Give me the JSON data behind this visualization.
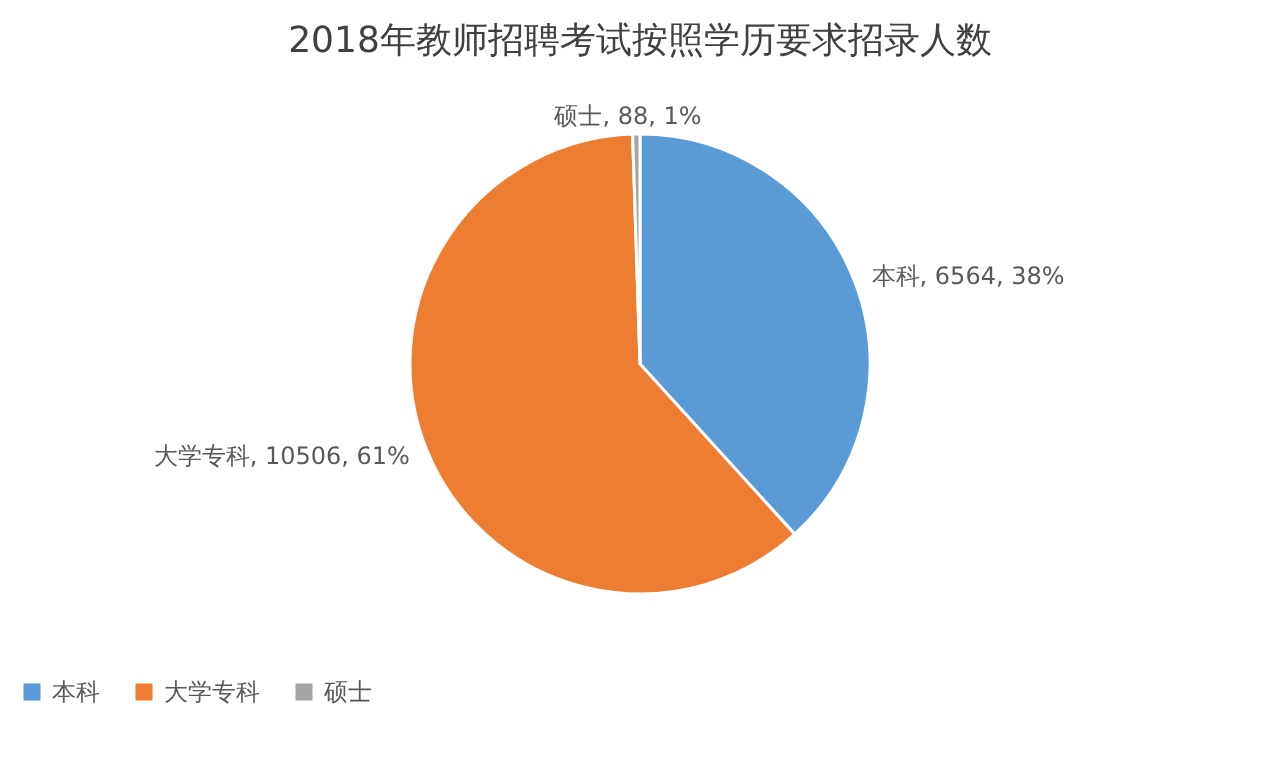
{
  "chart_data": {
    "type": "pie",
    "title": "2018年教师招聘考试按照学历要求招录人数",
    "categories": [
      "本科",
      "大学专科",
      "硕士"
    ],
    "values": [
      6564,
      10506,
      88
    ],
    "colors": [
      "#5b9bd5",
      "#ed7d31",
      "#a5a5a5"
    ],
    "value_labels": [
      "本科, 6564, 38%",
      "大学专科, 10506, 61%",
      "硕士, 88, 1%"
    ],
    "legend": "bottom"
  }
}
